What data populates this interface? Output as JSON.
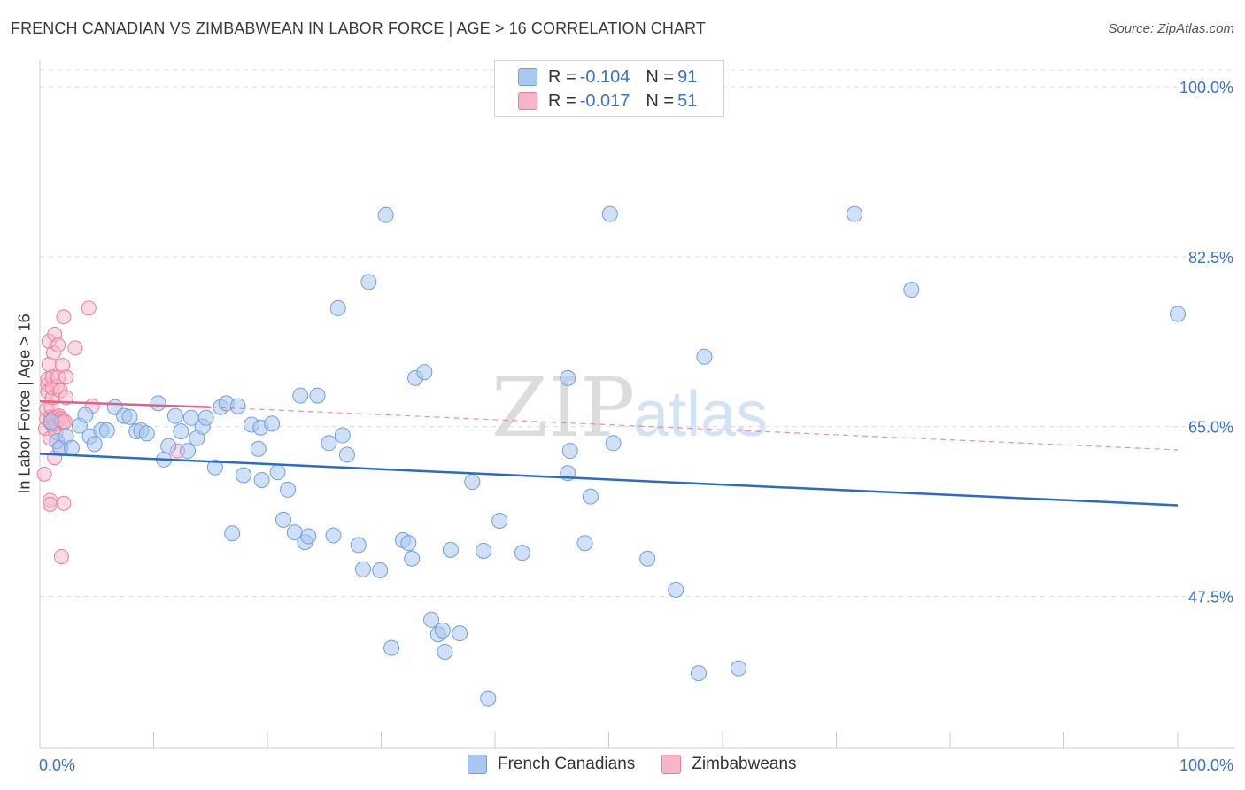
{
  "title": "FRENCH CANADIAN VS ZIMBABWEAN IN LABOR FORCE | AGE > 16 CORRELATION CHART",
  "source": "Source: ZipAtlas.com",
  "watermark": {
    "zip": "ZIP",
    "atlas": "atlas"
  },
  "colors": {
    "blue_fill": "#a9c8f0",
    "blue_stroke": "#6f9fe0",
    "blue_line": "#2a6ac8",
    "pink_fill": "#f7b6c8",
    "pink_stroke": "#ea7d9e",
    "pink_line": "#e0608a",
    "axis_text": "#3a73c9",
    "grid": "#dddddd"
  },
  "legend": {
    "rows": [
      {
        "r_label": "R = ",
        "r_value": "-0.104",
        "n_label": "N = ",
        "n_value": "91",
        "series": "blue"
      },
      {
        "r_label": "R = ",
        "r_value": "-0.017",
        "n_label": "N = ",
        "n_value": "51",
        "series": "pink"
      }
    ]
  },
  "bottom_legend": [
    "French Canadians",
    "Zimbabweans"
  ],
  "chart_data": {
    "type": "scatter",
    "title": "FRENCH CANADIAN VS ZIMBABWEAN IN LABOR FORCE | AGE > 16 CORRELATION CHART",
    "xlabel": "",
    "ylabel": "In Labor Force | Age > 16",
    "xlim": [
      0,
      100
    ],
    "ylim": [
      30,
      102
    ],
    "x_tick_labels": [
      "0.0%",
      "100.0%"
    ],
    "y_ticks": [
      47.5,
      65.0,
      82.5,
      100.0
    ],
    "y_tick_labels": [
      "47.5%",
      "65.0%",
      "82.5%",
      "100.0%"
    ],
    "grid": true,
    "series": [
      {
        "name": "French Canadians",
        "color": "blue",
        "R": -0.104,
        "N": 91,
        "trend": {
          "x": [
            0,
            100
          ],
          "y": [
            62.2,
            56.9
          ],
          "style": "solid"
        },
        "points": [
          [
            1.0,
            65.5
          ],
          [
            1.5,
            63.5
          ],
          [
            1.8,
            62.8
          ],
          [
            2.3,
            64.0
          ],
          [
            2.8,
            62.8
          ],
          [
            3.5,
            65.1
          ],
          [
            4.0,
            66.2
          ],
          [
            4.4,
            64.0
          ],
          [
            4.8,
            63.2
          ],
          [
            5.4,
            64.6
          ],
          [
            5.9,
            64.6
          ],
          [
            6.6,
            67.0
          ],
          [
            7.4,
            66.1
          ],
          [
            7.9,
            66.0
          ],
          [
            8.5,
            64.5
          ],
          [
            8.9,
            64.6
          ],
          [
            9.4,
            64.3
          ],
          [
            10.4,
            67.4
          ],
          [
            10.9,
            61.6
          ],
          [
            11.3,
            63.0
          ],
          [
            11.9,
            66.1
          ],
          [
            12.4,
            64.5
          ],
          [
            13.0,
            62.5
          ],
          [
            13.3,
            65.9
          ],
          [
            13.8,
            63.8
          ],
          [
            14.3,
            65.0
          ],
          [
            14.6,
            65.9
          ],
          [
            15.4,
            60.8
          ],
          [
            15.9,
            67.0
          ],
          [
            16.4,
            67.4
          ],
          [
            16.9,
            54.0
          ],
          [
            17.4,
            67.1
          ],
          [
            17.9,
            60.0
          ],
          [
            18.6,
            65.2
          ],
          [
            19.2,
            62.7
          ],
          [
            19.4,
            64.9
          ],
          [
            19.5,
            59.5
          ],
          [
            20.4,
            65.3
          ],
          [
            20.9,
            60.3
          ],
          [
            21.4,
            55.4
          ],
          [
            21.8,
            58.5
          ],
          [
            22.4,
            54.1
          ],
          [
            22.9,
            68.2
          ],
          [
            23.3,
            53.1
          ],
          [
            23.6,
            53.7
          ],
          [
            24.4,
            68.2
          ],
          [
            25.4,
            63.3
          ],
          [
            25.8,
            53.8
          ],
          [
            26.2,
            77.2
          ],
          [
            26.6,
            64.1
          ],
          [
            27.0,
            62.1
          ],
          [
            28.0,
            52.8
          ],
          [
            28.4,
            50.3
          ],
          [
            28.9,
            79.9
          ],
          [
            29.9,
            50.2
          ],
          [
            30.4,
            86.8
          ],
          [
            30.9,
            42.2
          ],
          [
            31.9,
            53.3
          ],
          [
            32.4,
            53.0
          ],
          [
            32.7,
            51.4
          ],
          [
            33.0,
            70.0
          ],
          [
            33.8,
            70.6
          ],
          [
            34.4,
            45.1
          ],
          [
            35.0,
            43.6
          ],
          [
            35.4,
            44.0
          ],
          [
            35.6,
            41.8
          ],
          [
            36.1,
            52.3
          ],
          [
            36.9,
            43.7
          ],
          [
            38.0,
            59.3
          ],
          [
            39.0,
            52.2
          ],
          [
            39.4,
            37.0
          ],
          [
            40.4,
            55.3
          ],
          [
            42.4,
            52.0
          ],
          [
            46.4,
            60.2
          ],
          [
            46.4,
            70.0
          ],
          [
            46.6,
            62.5
          ],
          [
            47.9,
            53.0
          ],
          [
            48.4,
            57.8
          ],
          [
            50.1,
            86.9
          ],
          [
            50.4,
            63.3
          ],
          [
            53.4,
            51.4
          ],
          [
            55.9,
            48.2
          ],
          [
            57.9,
            39.6
          ],
          [
            58.4,
            72.2
          ],
          [
            61.4,
            40.1
          ],
          [
            71.6,
            86.9
          ],
          [
            76.6,
            79.1
          ],
          [
            100.0,
            76.6
          ]
        ]
      },
      {
        "name": "Zimbabweans",
        "color": "pink",
        "R": -0.017,
        "N": 51,
        "trend": {
          "x": [
            0,
            15
          ],
          "y": [
            67.6,
            67.0
          ],
          "style": "solid",
          "dashed_extension_to": [
            100,
            62.6
          ]
        },
        "points": [
          [
            0.4,
            60.1
          ],
          [
            0.5,
            64.8
          ],
          [
            0.6,
            65.8
          ],
          [
            0.6,
            66.8
          ],
          [
            0.7,
            68.6
          ],
          [
            0.7,
            69.3
          ],
          [
            0.7,
            69.9
          ],
          [
            0.8,
            71.4
          ],
          [
            0.8,
            73.8
          ],
          [
            0.9,
            57.4
          ],
          [
            0.9,
            57.0
          ],
          [
            0.9,
            63.8
          ],
          [
            1.0,
            65.3
          ],
          [
            1.0,
            66.0
          ],
          [
            1.0,
            67.0
          ],
          [
            1.1,
            68.0
          ],
          [
            1.1,
            69.0
          ],
          [
            1.1,
            70.1
          ],
          [
            1.2,
            65.2
          ],
          [
            1.2,
            65.9
          ],
          [
            1.2,
            72.6
          ],
          [
            1.3,
            74.5
          ],
          [
            1.3,
            61.8
          ],
          [
            1.4,
            64.4
          ],
          [
            1.4,
            65.3
          ],
          [
            1.5,
            66.0
          ],
          [
            1.5,
            69.1
          ],
          [
            1.6,
            70.1
          ],
          [
            1.6,
            73.4
          ],
          [
            1.7,
            65.8
          ],
          [
            1.7,
            66.1
          ],
          [
            1.8,
            62.8
          ],
          [
            1.8,
            68.7
          ],
          [
            1.9,
            51.6
          ],
          [
            1.9,
            65.8
          ],
          [
            2.0,
            65.5
          ],
          [
            2.0,
            71.3
          ],
          [
            2.1,
            76.3
          ],
          [
            2.1,
            57.1
          ],
          [
            2.2,
            65.5
          ],
          [
            2.3,
            70.1
          ],
          [
            2.3,
            68.0
          ],
          [
            3.1,
            73.1
          ],
          [
            4.3,
            77.2
          ],
          [
            4.6,
            67.1
          ],
          [
            12.1,
            62.5
          ]
        ]
      }
    ]
  }
}
